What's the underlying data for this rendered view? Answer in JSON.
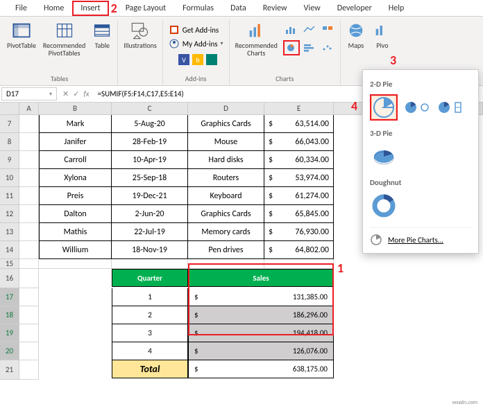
{
  "tabs": [
    "File",
    "Home",
    "Insert",
    "Page Layout",
    "Formulas",
    "Data",
    "Review",
    "View",
    "Developer",
    "Help"
  ],
  "ribbon": {
    "tables_label": "Tables",
    "pivottable": "PivotTable",
    "recommended_pt": "Recommended\nPivotTables",
    "table": "Table",
    "illustrations": "Illustrations",
    "addins_label": "Add-ins",
    "get_addins": "Get Add-ins",
    "my_addins": "My Add-ins",
    "recommended_charts": "Recommended\nCharts",
    "charts_label": "Charts",
    "maps": "Maps",
    "pivotch": "Pivo"
  },
  "name_box": "D17",
  "formula": "=SUMIF(F5:F14,C17,E5:E14)",
  "columns": {
    "A": 28,
    "B": 105,
    "C": 110,
    "D": 110,
    "E": 100
  },
  "data_rows": [
    {
      "r": 7,
      "b": "Mark",
      "c": "5-Aug-20",
      "d": "Graphics Cards",
      "e": "63,514.00"
    },
    {
      "r": 8,
      "b": "Janifer",
      "c": "28-Feb-19",
      "d": "Mouse",
      "e": "66,043.00"
    },
    {
      "r": 9,
      "b": "Carroll",
      "c": "10-Apr-19",
      "d": "Hard disks",
      "e": "60,334.00"
    },
    {
      "r": 10,
      "b": "Xylona",
      "c": "25-Sep-18",
      "d": "Routers",
      "e": "53,974.00"
    },
    {
      "r": 11,
      "b": "Preis",
      "c": "19-Dec-21",
      "d": "Keyboard",
      "e": "61,274.00"
    },
    {
      "r": 12,
      "b": "Dalton",
      "c": "2-Jun-20",
      "d": "Graphics Cards",
      "e": "65,845.00"
    },
    {
      "r": 13,
      "b": "Mathis",
      "c": "22-Jul-19",
      "d": "Memory cards",
      "e": "76,930.00"
    },
    {
      "r": 14,
      "b": "Willium",
      "c": "18-Nov-19",
      "d": "Pen drives",
      "e": "64,802.00"
    }
  ],
  "quarter": {
    "headers": [
      "Quarter",
      "Sales"
    ],
    "rows": [
      {
        "q": "1",
        "s": "131,385.00"
      },
      {
        "q": "2",
        "s": "186,296.00"
      },
      {
        "q": "3",
        "s": "194,418.00"
      },
      {
        "q": "4",
        "s": "126,076.00"
      }
    ],
    "total_label": "Total",
    "total_value": "638,175.00"
  },
  "pie_menu": {
    "pie2d": "2-D Pie",
    "pie3d": "3-D Pie",
    "doughnut": "Doughnut",
    "more": "More Pie Charts..."
  },
  "annotations": {
    "a1": "1",
    "a2": "2",
    "a3": "3",
    "a4": "4"
  },
  "colors": {
    "accent_blue": "#5b9bd5",
    "accent_dark": "#2f5597",
    "green": "#00b050",
    "yellow": "#ffe699",
    "red": "#ed1c24",
    "grid": "#d4d4d4",
    "sel": "#d0cece"
  },
  "watermark": "wsxdn.com"
}
